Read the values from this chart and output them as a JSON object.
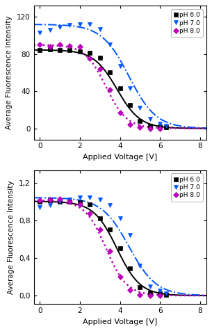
{
  "top": {
    "ylabel": "Average Fluorescence Intensity",
    "xlabel": "Applied Voltage [V]",
    "xlim": [
      -0.3,
      8.3
    ],
    "ylim": [
      -12,
      132
    ],
    "yticks": [
      0,
      40,
      80,
      120
    ],
    "xticks": [
      0,
      2,
      4,
      6,
      8
    ],
    "ph6_x": [
      0.0,
      0.5,
      1.0,
      1.5,
      2.0,
      2.5,
      3.0,
      3.5,
      4.0,
      4.5,
      5.0,
      5.5,
      6.0,
      6.3
    ],
    "ph6_y": [
      84,
      85,
      84,
      84,
      83,
      81,
      76,
      60,
      43,
      25,
      8,
      3,
      2,
      1
    ],
    "ph7_x": [
      0.0,
      0.5,
      1.0,
      1.5,
      2.0,
      2.5,
      3.0,
      3.5,
      4.0,
      4.5,
      5.0,
      5.5,
      6.0,
      6.3
    ],
    "ph7_y": [
      103,
      106,
      109,
      111,
      112,
      112,
      107,
      90,
      67,
      43,
      22,
      10,
      5,
      3
    ],
    "ph8_x": [
      0.0,
      0.5,
      1.0,
      1.5,
      2.0,
      2.5,
      3.0,
      3.5,
      4.0,
      4.5,
      5.0,
      5.5,
      6.0
    ],
    "ph8_y": [
      90,
      88,
      90,
      89,
      88,
      75,
      64,
      42,
      17,
      4,
      1,
      0,
      0
    ],
    "fit6_params": [
      84.5,
      0,
      3.85,
      0.58
    ],
    "fit7_params": [
      112,
      0,
      4.45,
      0.68
    ],
    "fit8_params": [
      90,
      0,
      3.3,
      0.52
    ]
  },
  "bottom": {
    "ylabel": "Average Fluorescence Intensity",
    "xlabel": "Applied Voltage [V]",
    "xlim": [
      -0.3,
      8.3
    ],
    "ylim": [
      -0.09,
      1.33
    ],
    "yticks": [
      0.0,
      0.4,
      0.8,
      1.2
    ],
    "ytick_labels": [
      "0,0",
      "0,4",
      "0,8",
      "1,2"
    ],
    "xticks": [
      0,
      2,
      4,
      6,
      8
    ],
    "ph6_x": [
      0.0,
      0.5,
      1.0,
      1.5,
      2.0,
      2.5,
      3.0,
      3.5,
      4.0,
      4.5,
      5.0,
      5.5,
      6.0,
      6.3
    ],
    "ph6_y": [
      1.0,
      1.01,
      1.0,
      1.0,
      0.99,
      0.97,
      0.82,
      0.7,
      0.5,
      0.29,
      0.09,
      0.03,
      0.02,
      0.01
    ],
    "ph7_x": [
      0.0,
      0.5,
      1.0,
      1.5,
      2.0,
      2.5,
      3.0,
      3.5,
      4.0,
      4.5,
      5.0,
      5.5,
      6.0,
      6.3
    ],
    "ph7_y": [
      0.94,
      0.96,
      1.0,
      1.02,
      1.04,
      1.04,
      1.02,
      0.96,
      0.82,
      0.64,
      0.32,
      0.1,
      0.05,
      0.02
    ],
    "ph8_x": [
      0.0,
      0.5,
      1.0,
      1.5,
      2.0,
      2.5,
      3.0,
      3.5,
      4.0,
      4.5,
      5.0,
      5.5,
      6.0
    ],
    "ph8_y": [
      1.01,
      1.02,
      1.03,
      1.0,
      0.97,
      0.87,
      0.7,
      0.47,
      0.2,
      0.06,
      0.01,
      0.0,
      0.0
    ],
    "fit6_params": [
      1.0,
      0,
      3.85,
      0.58
    ],
    "fit7_params": [
      1.04,
      0,
      4.45,
      0.68
    ],
    "fit8_params": [
      1.01,
      0,
      3.3,
      0.52
    ]
  },
  "color_ph6": "#000000",
  "color_ph7": "#0055ff",
  "color_ph8": "#bb00bb",
  "marker_ph6": "s",
  "marker_ph7": "v",
  "marker_ph8": "D",
  "bg_color": "#ffffff",
  "fig_width": 3.05,
  "fig_height": 4.76,
  "dpi": 100
}
